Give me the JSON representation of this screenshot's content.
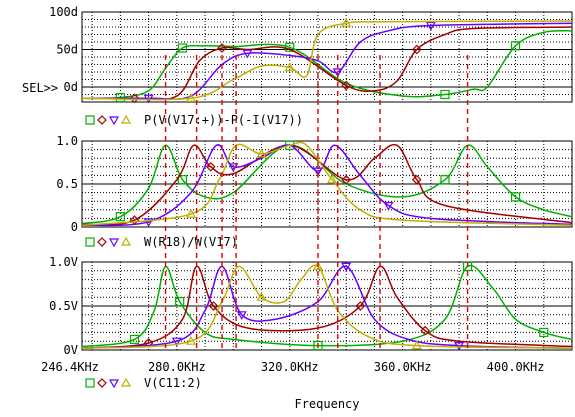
{
  "chart_data": [
    {
      "type": "line",
      "panel": "top",
      "y_tick_labels": [
        "100d",
        "50d",
        "0d"
      ],
      "ylim": [
        -20,
        100
      ],
      "yunit": "d",
      "selector_label": "SEL>>",
      "legend_expr": "P(V(V17:+))-P(-I(V17))",
      "series": [
        {
          "color": "#00b000",
          "marker": "square",
          "x": [
            246.4,
            260,
            270,
            276,
            282,
            290,
            300,
            320,
            340,
            360,
            375,
            385,
            390,
            400,
            410,
            420
          ],
          "y": [
            -15,
            -14,
            -5,
            25,
            52,
            55,
            54,
            53,
            5,
            -12,
            -10,
            -3,
            0,
            55,
            73,
            75
          ]
        },
        {
          "color": "#a00000",
          "marker": "diamond",
          "x": [
            246.4,
            265,
            280,
            288,
            296,
            305,
            320,
            340,
            350,
            358,
            365,
            375,
            385,
            420
          ],
          "y": [
            -15,
            -15,
            -12,
            35,
            52,
            50,
            50,
            2,
            -5,
            8,
            50,
            70,
            78,
            80
          ]
        },
        {
          "color": "#6a00ff",
          "marker": "triangle-down",
          "x": [
            246.4,
            270,
            285,
            296,
            305,
            320,
            330,
            337,
            345,
            355,
            370,
            420
          ],
          "y": [
            -15,
            -15,
            -12,
            30,
            45,
            42,
            35,
            20,
            60,
            75,
            82,
            85
          ]
        },
        {
          "color": "#c0b000",
          "marker": "triangle-up",
          "x": [
            246.4,
            285,
            300,
            310,
            320,
            326,
            330,
            340,
            355,
            420
          ],
          "y": [
            -15,
            -15,
            10,
            28,
            26,
            15,
            70,
            85,
            87,
            88
          ]
        }
      ]
    },
    {
      "type": "line",
      "panel": "middle",
      "y_tick_labels": [
        "1.0",
        "0.5",
        "0"
      ],
      "ylim": [
        0,
        1.0
      ],
      "legend_expr": "W(R18)/W(V17)",
      "series": [
        {
          "color": "#00b000",
          "marker": "square",
          "x": [
            246.4,
            260,
            270,
            276,
            282,
            290,
            300,
            320,
            340,
            360,
            375,
            383,
            390,
            400,
            410,
            420
          ],
          "y": [
            0.04,
            0.12,
            0.45,
            0.95,
            0.55,
            0.35,
            0.4,
            0.95,
            0.5,
            0.35,
            0.55,
            0.95,
            0.7,
            0.35,
            0.2,
            0.12
          ]
        },
        {
          "color": "#a00000",
          "marker": "diamond",
          "x": [
            246.4,
            265,
            280,
            286,
            292,
            300,
            320,
            340,
            350,
            358,
            365,
            375,
            420
          ],
          "y": [
            0.03,
            0.08,
            0.55,
            0.95,
            0.7,
            0.62,
            0.95,
            0.55,
            0.8,
            0.95,
            0.55,
            0.25,
            0.05
          ]
        },
        {
          "color": "#6a00ff",
          "marker": "triangle-down",
          "x": [
            246.4,
            270,
            285,
            294,
            300,
            310,
            320,
            330,
            336,
            345,
            355,
            370,
            420
          ],
          "y": [
            0.02,
            0.06,
            0.4,
            0.95,
            0.7,
            0.8,
            0.95,
            0.65,
            0.95,
            0.6,
            0.25,
            0.1,
            0.03
          ]
        },
        {
          "color": "#c0b000",
          "marker": "triangle-up",
          "x": [
            246.4,
            285,
            295,
            301,
            310,
            320,
            326,
            335,
            345,
            360,
            420
          ],
          "y": [
            0.02,
            0.15,
            0.55,
            0.95,
            0.85,
            0.95,
            0.95,
            0.55,
            0.2,
            0.08,
            0.02
          ]
        }
      ]
    },
    {
      "type": "line",
      "panel": "bottom",
      "y_tick_labels": [
        "1.0V",
        "0.5V",
        "0V"
      ],
      "ylim": [
        0,
        1.0
      ],
      "xlim": [
        246.4,
        420
      ],
      "x_tick_values": [
        246.4,
        280,
        320,
        360,
        400
      ],
      "x_tick_labels": [
        "246.4KHz",
        "280.0KHz",
        "320.0KHz",
        "360.0KHz",
        "400.0KHz"
      ],
      "xlabel": "Frequency",
      "legend_expr": "V(C11:2)",
      "series": [
        {
          "color": "#00b000",
          "marker": "square",
          "x": [
            246.4,
            265,
            272,
            276,
            281,
            290,
            300,
            330,
            360,
            375,
            383,
            392,
            400,
            410,
            420
          ],
          "y": [
            0.04,
            0.12,
            0.45,
            0.95,
            0.55,
            0.2,
            0.12,
            0.05,
            0.1,
            0.35,
            0.95,
            0.7,
            0.35,
            0.2,
            0.12
          ]
        },
        {
          "color": "#a00000",
          "marker": "diamond",
          "x": [
            246.4,
            270,
            282,
            287,
            293,
            305,
            330,
            345,
            352,
            358,
            368,
            380,
            420
          ],
          "y": [
            0.02,
            0.08,
            0.35,
            0.95,
            0.5,
            0.25,
            0.25,
            0.5,
            0.95,
            0.6,
            0.22,
            0.1,
            0.04
          ]
        },
        {
          "color": "#6a00ff",
          "marker": "triangle-down",
          "x": [
            246.4,
            280,
            290,
            296,
            303,
            315,
            330,
            340,
            350,
            362,
            380,
            420
          ],
          "y": [
            0.02,
            0.1,
            0.45,
            0.95,
            0.4,
            0.35,
            0.55,
            0.95,
            0.35,
            0.12,
            0.05,
            0.02
          ]
        },
        {
          "color": "#c0b000",
          "marker": "triangle-up",
          "x": [
            246.4,
            285,
            296,
            302,
            310,
            318,
            324,
            330,
            337,
            348,
            365,
            420
          ],
          "y": [
            0.02,
            0.1,
            0.55,
            0.95,
            0.6,
            0.55,
            0.8,
            0.95,
            0.45,
            0.15,
            0.05,
            0.02
          ]
        }
      ]
    }
  ],
  "marker_lines_x": [
    276,
    287,
    296,
    301,
    330,
    337,
    352,
    383
  ]
}
